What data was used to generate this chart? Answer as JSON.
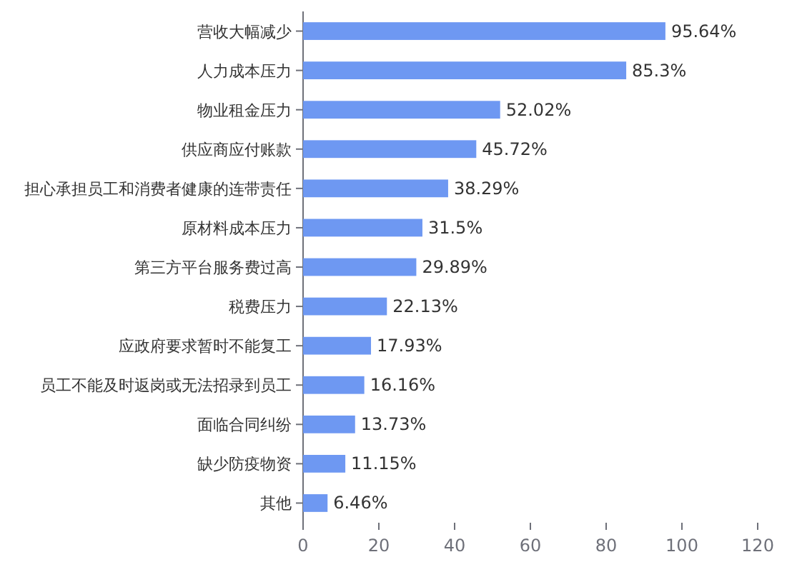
{
  "chart_data": {
    "type": "bar",
    "orientation": "horizontal",
    "categories": [
      "营收大幅减少",
      "人力成本压力",
      "物业租金压力",
      "供应商应付账款",
      "担心承担员工和消费者健康的连带责任",
      "原材料成本压力",
      "第三方平台服务费过高",
      "税费压力",
      "应政府要求暂时不能复工",
      "员工不能及时返岗或无法招录到员工",
      "面临合同纠纷",
      "缺少防疫物资",
      "其他"
    ],
    "values": [
      95.64,
      85.3,
      52.02,
      45.72,
      38.29,
      31.5,
      29.89,
      22.13,
      17.93,
      16.16,
      13.73,
      11.15,
      6.46
    ],
    "value_labels": [
      "95.64%",
      "85.3%",
      "52.02%",
      "45.72%",
      "38.29%",
      "31.5%",
      "29.89%",
      "22.13%",
      "17.93%",
      "16.16%",
      "13.73%",
      "11.15%",
      "6.46%"
    ],
    "color": "#6e98f2",
    "xlim": [
      0,
      120
    ],
    "xticks": [
      0,
      20,
      40,
      60,
      80,
      100,
      120
    ],
    "grid": false
  }
}
